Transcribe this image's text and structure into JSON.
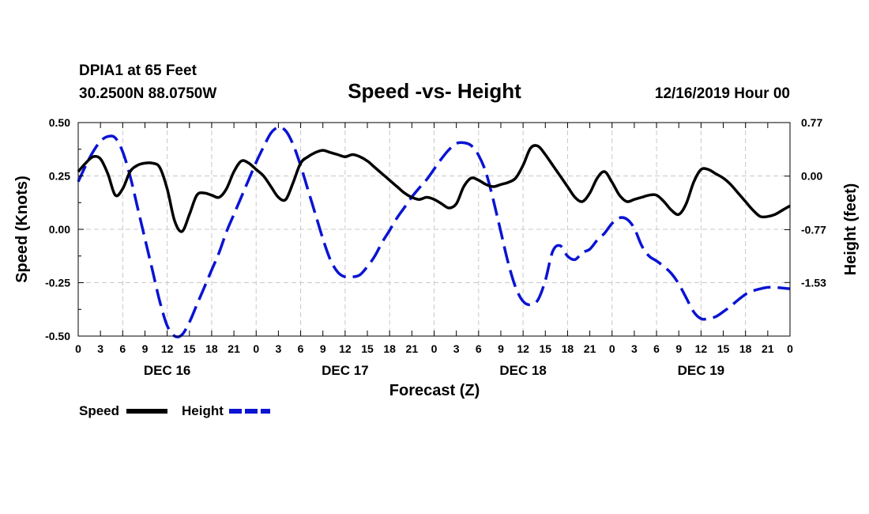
{
  "chart_data": {
    "type": "line",
    "title": "Speed -vs- Height",
    "station": "DPIA1 at 65 Feet",
    "location": "30.2500N 88.0750W",
    "forecast_time": "12/16/2019 Hour 00",
    "xlabel": "Forecast (Z)",
    "ylabel_left": "Speed (Knots)",
    "ylabel_right": "Height (feet)",
    "x_range_hours": [
      0,
      96
    ],
    "ylim_left": [
      -0.5,
      0.5
    ],
    "yticks_left": [
      "0.50",
      "0.25",
      "0.00",
      "-0.25",
      "-0.50"
    ],
    "yticks_left_values": [
      0.5,
      0.25,
      0.0,
      -0.25,
      -0.5
    ],
    "ylim_right": [
      -2.3,
      0.77
    ],
    "yticks_right": [
      "0.77",
      "0.00",
      "-0.77",
      "-1.53"
    ],
    "yticks_right_values": [
      0.77,
      0.0,
      -0.77,
      -1.53
    ],
    "x_tick_labels": [
      "0",
      "3",
      "6",
      "9",
      "12",
      "15",
      "18",
      "21",
      "0",
      "3",
      "6",
      "9",
      "12",
      "15",
      "18",
      "21",
      "0",
      "3",
      "6",
      "9",
      "12",
      "15",
      "18",
      "21",
      "0",
      "3",
      "6",
      "9",
      "12",
      "15",
      "18",
      "21",
      "0"
    ],
    "day_labels": [
      {
        "label": "DEC 16",
        "hour": 12
      },
      {
        "label": "DEC 17",
        "hour": 36
      },
      {
        "label": "DEC 18",
        "hour": 60
      },
      {
        "label": "DEC 19",
        "hour": 84
      }
    ],
    "grid": true,
    "legend": [
      {
        "name": "Speed",
        "color": "#000000",
        "style": "solid"
      },
      {
        "name": "Height",
        "color": "#0a14d2",
        "style": "dashed"
      }
    ],
    "series": [
      {
        "name": "Speed",
        "axis": "left",
        "color": "#000000",
        "style": "solid",
        "x": [
          0,
          1,
          2,
          3,
          4,
          5,
          6,
          7,
          8,
          9,
          10,
          11,
          12,
          13,
          14,
          15,
          16,
          17,
          18,
          19,
          20,
          21,
          22,
          23,
          24,
          25,
          26,
          27,
          28,
          29,
          30,
          31,
          32,
          33,
          34,
          35,
          36,
          37,
          38,
          39,
          40,
          41,
          42,
          43,
          44,
          45,
          46,
          47,
          48,
          49,
          50,
          51,
          52,
          53,
          54,
          55,
          56,
          57,
          58,
          59,
          60,
          61,
          62,
          63,
          64,
          65,
          66,
          67,
          68,
          69,
          70,
          71,
          72,
          73,
          74,
          75,
          76,
          77,
          78,
          79,
          80,
          81,
          82,
          83,
          84,
          85,
          86,
          87,
          88,
          89,
          90,
          91,
          92,
          93,
          94,
          95,
          96
        ],
        "values": [
          0.27,
          0.31,
          0.34,
          0.33,
          0.26,
          0.16,
          0.19,
          0.27,
          0.3,
          0.31,
          0.31,
          0.29,
          0.19,
          0.04,
          -0.01,
          0.07,
          0.16,
          0.17,
          0.16,
          0.15,
          0.19,
          0.27,
          0.32,
          0.31,
          0.28,
          0.25,
          0.2,
          0.15,
          0.14,
          0.22,
          0.31,
          0.34,
          0.36,
          0.37,
          0.36,
          0.35,
          0.34,
          0.35,
          0.34,
          0.32,
          0.29,
          0.26,
          0.23,
          0.2,
          0.17,
          0.15,
          0.14,
          0.15,
          0.14,
          0.12,
          0.1,
          0.12,
          0.2,
          0.24,
          0.23,
          0.21,
          0.2,
          0.21,
          0.22,
          0.24,
          0.3,
          0.38,
          0.39,
          0.35,
          0.3,
          0.25,
          0.2,
          0.15,
          0.13,
          0.17,
          0.24,
          0.27,
          0.22,
          0.16,
          0.13,
          0.14,
          0.15,
          0.16,
          0.16,
          0.13,
          0.09,
          0.07,
          0.12,
          0.22,
          0.28,
          0.28,
          0.26,
          0.24,
          0.21,
          0.17,
          0.13,
          0.09,
          0.06,
          0.06,
          0.07,
          0.09,
          0.11
        ]
      },
      {
        "name": "Height",
        "axis": "right",
        "color": "#0a14d2",
        "style": "dashed",
        "x": [
          0,
          1,
          2,
          3,
          4,
          5,
          6,
          7,
          8,
          9,
          10,
          11,
          12,
          13,
          14,
          15,
          16,
          17,
          18,
          19,
          20,
          21,
          22,
          23,
          24,
          25,
          26,
          27,
          28,
          29,
          30,
          31,
          32,
          33,
          34,
          35,
          36,
          37,
          38,
          39,
          40,
          41,
          42,
          43,
          44,
          45,
          46,
          47,
          48,
          49,
          50,
          51,
          52,
          53,
          54,
          55,
          56,
          57,
          58,
          59,
          60,
          61,
          62,
          63,
          64,
          65,
          66,
          67,
          68,
          69,
          70,
          71,
          72,
          73,
          74,
          75,
          76,
          77,
          78,
          79,
          80,
          81,
          82,
          83,
          84,
          85,
          86,
          87,
          88,
          89,
          90,
          91,
          92,
          93,
          94,
          95,
          96
        ],
        "values": [
          -0.08,
          0.15,
          0.35,
          0.5,
          0.57,
          0.55,
          0.35,
          0.0,
          -0.45,
          -0.9,
          -1.35,
          -1.8,
          -2.15,
          -2.3,
          -2.28,
          -2.1,
          -1.85,
          -1.6,
          -1.35,
          -1.1,
          -0.8,
          -0.55,
          -0.3,
          -0.05,
          0.2,
          0.42,
          0.62,
          0.7,
          0.65,
          0.45,
          0.15,
          -0.2,
          -0.55,
          -0.9,
          -1.2,
          -1.38,
          -1.45,
          -1.45,
          -1.42,
          -1.3,
          -1.15,
          -0.95,
          -0.78,
          -0.6,
          -0.45,
          -0.3,
          -0.17,
          -0.05,
          0.1,
          0.25,
          0.38,
          0.47,
          0.48,
          0.44,
          0.3,
          0.05,
          -0.35,
          -0.8,
          -1.25,
          -1.6,
          -1.8,
          -1.85,
          -1.78,
          -1.5,
          -1.08,
          -1.0,
          -1.15,
          -1.2,
          -1.1,
          -1.05,
          -0.92,
          -0.82,
          -0.68,
          -0.6,
          -0.62,
          -0.75,
          -1.0,
          -1.15,
          -1.22,
          -1.3,
          -1.4,
          -1.55,
          -1.75,
          -1.95,
          -2.05,
          -2.05,
          -2.02,
          -1.95,
          -1.87,
          -1.78,
          -1.7,
          -1.65,
          -1.62,
          -1.6,
          -1.6,
          -1.61,
          -1.62
        ]
      }
    ]
  }
}
